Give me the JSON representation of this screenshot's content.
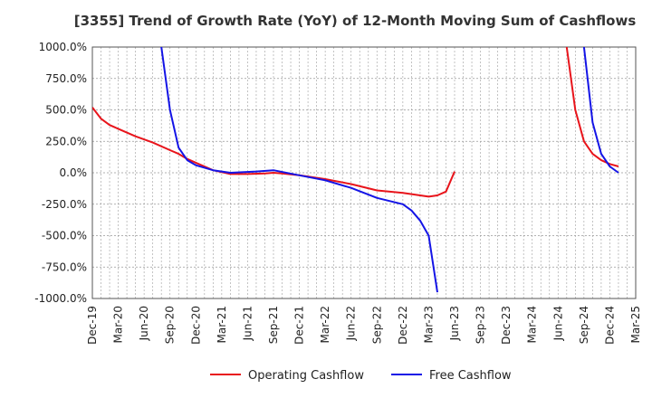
{
  "chart_data": {
    "type": "line",
    "title": "[3355]  Trend of Growth Rate (YoY) of 12-Month Moving Sum of Cashflows",
    "xlabel": "",
    "ylabel": "",
    "ylim": [
      -1000,
      1000
    ],
    "yticks": [
      1000,
      750,
      500,
      250,
      0,
      -250,
      -500,
      -750,
      -1000
    ],
    "ytick_labels": [
      "1000.0%",
      "750.0%",
      "500.0%",
      "250.0%",
      "0.0%",
      "-250.0%",
      "-500.0%",
      "-750.0%",
      "-1000.0%"
    ],
    "x_start": "2019-12",
    "x_end": "2025-03",
    "xtick_labels": [
      "Dec-19",
      "Mar-20",
      "Jun-20",
      "Sep-20",
      "Dec-20",
      "Mar-21",
      "Jun-21",
      "Sep-21",
      "Dec-21",
      "Mar-22",
      "Jun-22",
      "Sep-22",
      "Dec-22",
      "Mar-23",
      "Jun-23",
      "Sep-23",
      "Dec-23",
      "Mar-24",
      "Jun-24",
      "Sep-24",
      "Dec-24",
      "Mar-25"
    ],
    "grid": true,
    "legend_position": "bottom",
    "series": [
      {
        "name": "Operating Cashflow",
        "color": "#e8141b",
        "points": [
          [
            "2019-12",
            520
          ],
          [
            "2020-01",
            430
          ],
          [
            "2020-02",
            380
          ],
          [
            "2020-03",
            350
          ],
          [
            "2020-05",
            290
          ],
          [
            "2020-07",
            240
          ],
          [
            "2020-09",
            180
          ],
          [
            "2020-10",
            150
          ],
          [
            "2020-11",
            110
          ],
          [
            "2020-12",
            80
          ],
          [
            "2021-01",
            50
          ],
          [
            "2021-02",
            20
          ],
          [
            "2021-04",
            -10
          ],
          [
            "2021-06",
            -10
          ],
          [
            "2021-08",
            -5
          ],
          [
            "2021-09",
            0
          ],
          [
            "2021-10",
            -5
          ],
          [
            "2021-12",
            -20
          ],
          [
            "2022-03",
            -50
          ],
          [
            "2022-06",
            -90
          ],
          [
            "2022-09",
            -140
          ],
          [
            "2022-12",
            -160
          ],
          [
            "2023-02",
            -180
          ],
          [
            "2023-03",
            -190
          ],
          [
            "2023-04",
            -180
          ],
          [
            "2023-05",
            -150
          ],
          [
            "2023-06",
            10
          ]
        ]
      },
      {
        "name": "Operating Cashflow",
        "color": "#e8141b",
        "points": [
          [
            "2024-07",
            1000
          ],
          [
            "2024-08",
            500
          ],
          [
            "2024-09",
            250
          ],
          [
            "2024-10",
            150
          ],
          [
            "2024-11",
            100
          ],
          [
            "2024-12",
            70
          ],
          [
            "2025-01",
            50
          ]
        ]
      },
      {
        "name": "Free Cashflow",
        "color": "#1414e6",
        "points": [
          [
            "2020-08",
            1000
          ],
          [
            "2020-09",
            500
          ],
          [
            "2020-10",
            200
          ],
          [
            "2020-11",
            100
          ],
          [
            "2020-12",
            60
          ],
          [
            "2021-02",
            20
          ],
          [
            "2021-04",
            0
          ],
          [
            "2021-07",
            10
          ],
          [
            "2021-09",
            20
          ],
          [
            "2021-12",
            -20
          ],
          [
            "2022-03",
            -60
          ],
          [
            "2022-06",
            -120
          ],
          [
            "2022-09",
            -200
          ],
          [
            "2022-12",
            -250
          ],
          [
            "2023-01",
            -300
          ],
          [
            "2023-02",
            -380
          ],
          [
            "2023-03",
            -500
          ],
          [
            "2023-04",
            -950
          ]
        ]
      },
      {
        "name": "Free Cashflow",
        "color": "#1414e6",
        "points": [
          [
            "2024-09",
            1000
          ],
          [
            "2024-10",
            400
          ],
          [
            "2024-11",
            150
          ],
          [
            "2024-12",
            50
          ],
          [
            "2025-01",
            0
          ]
        ]
      }
    ],
    "legend": [
      {
        "name": "Operating Cashflow",
        "color": "#e8141b"
      },
      {
        "name": "Free Cashflow",
        "color": "#1414e6"
      }
    ]
  }
}
